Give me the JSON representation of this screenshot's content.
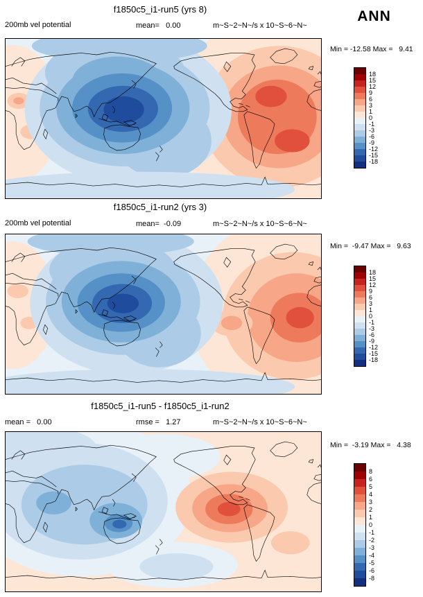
{
  "header": {
    "season_label": "ANN"
  },
  "panels": [
    {
      "title": "f1850c5_i1-run5 (yrs 8)",
      "var_label": "200mb vel potential",
      "mean_label": "mean=   0.00",
      "units": "m~S~2~N~/s x 10~S~6~N~",
      "minmax": "Min = -12.58 Max =   9.41",
      "colorbar": {
        "labels": [
          "18",
          "15",
          "12",
          "9",
          "6",
          "3",
          "1",
          "0",
          "-1",
          "-3",
          "-6",
          "-9",
          "-12",
          "-15",
          "-18"
        ],
        "colors": [
          "#6b0001",
          "#9e0003",
          "#c7241f",
          "#e1503c",
          "#ee7a5c",
          "#f7a688",
          "#fbc9ae",
          "#fde6d6",
          "#e8f0f8",
          "#cfe0f1",
          "#abcbe6",
          "#7fb0d8",
          "#5590c7",
          "#3468b1",
          "#1f4c9c",
          "#12307f"
        ]
      }
    },
    {
      "title": "f1850c5_i1-run2 (yrs 3)",
      "var_label": "200mb vel potential",
      "mean_label": "mean=  -0.09",
      "units": "m~S~2~N~/s x 10~S~6~N~",
      "minmax": "Min =  -9.47 Max =   9.63",
      "colorbar": {
        "labels": [
          "18",
          "15",
          "12",
          "9",
          "6",
          "3",
          "1",
          "0",
          "-1",
          "-3",
          "-6",
          "-9",
          "-12",
          "-15",
          "-18"
        ],
        "colors": [
          "#6b0001",
          "#9e0003",
          "#c7241f",
          "#e1503c",
          "#ee7a5c",
          "#f7a688",
          "#fbc9ae",
          "#fde6d6",
          "#e8f0f8",
          "#cfe0f1",
          "#abcbe6",
          "#7fb0d8",
          "#5590c7",
          "#3468b1",
          "#1f4c9c",
          "#12307f"
        ]
      }
    },
    {
      "title": "f1850c5_i1-run5 - f1850c5_i1-run2",
      "mean_label": "mean =   0.00",
      "rmse_label": "rmse =   1.27",
      "units": "m~S~2~N~/s x 10~S~6~N~",
      "minmax": "Min =  -3.19 Max =   4.38",
      "colorbar": {
        "labels": [
          "8",
          "6",
          "5",
          "4",
          "3",
          "2",
          "1",
          "0",
          "-1",
          "-2",
          "-3",
          "-4",
          "-5",
          "-6",
          "-8"
        ],
        "colors": [
          "#6b0001",
          "#9e0003",
          "#c7241f",
          "#e1503c",
          "#ee7a5c",
          "#f7a688",
          "#fbc9ae",
          "#fde6d6",
          "#e8f0f8",
          "#cfe0f1",
          "#abcbe6",
          "#7fb0d8",
          "#5590c7",
          "#3468b1",
          "#1f4c9c",
          "#12307f"
        ]
      }
    }
  ],
  "chart_data": [
    {
      "type": "heatmap",
      "subtype": "filled-contour-global-map",
      "title": "f1850c5_i1-run5 (yrs 8)",
      "variable": "200mb vel potential",
      "season": "ANN",
      "units_raw": "m~S~2~N~/s x 10~S~6~N~",
      "units_meaning": "m^2/s x 10^6",
      "mean": 0.0,
      "min": -12.58,
      "max": 9.41,
      "contour_levels": [
        -18,
        -15,
        -12,
        -9,
        -6,
        -3,
        -1,
        0,
        1,
        3,
        6,
        9,
        12,
        15,
        18
      ],
      "pattern": "Negative (blue) center over Asia / Maritime Continent; positive (orange-red) maxima over tropical Atlantic and South America; weak positives at far left (Africa) edge"
    },
    {
      "type": "heatmap",
      "subtype": "filled-contour-global-map",
      "title": "f1850c5_i1-run2 (yrs 3)",
      "variable": "200mb vel potential",
      "season": "ANN",
      "units_raw": "m~S~2~N~/s x 10~S~6~N~",
      "units_meaning": "m^2/s x 10^6",
      "mean": -0.09,
      "min": -9.47,
      "max": 9.63,
      "contour_levels": [
        -18,
        -15,
        -12,
        -9,
        -6,
        -3,
        -1,
        0,
        1,
        3,
        6,
        9,
        12,
        15,
        18
      ],
      "pattern": "Negative (blue) center over Asia / Maritime Continent; positive maximum over South America / South Atlantic; secondary positive spot in eastern Pacific"
    },
    {
      "type": "heatmap",
      "subtype": "filled-contour-global-map",
      "title": "f1850c5_i1-run5 - f1850c5_i1-run2",
      "variable": "200mb vel potential (difference run5 - run2)",
      "season": "ANN",
      "units_raw": "m~S~2~N~/s x 10~S~6~N~",
      "units_meaning": "m^2/s x 10^6",
      "mean": 0.0,
      "rmse": 1.27,
      "min": -3.19,
      "max": 4.38,
      "contour_levels": [
        -8,
        -6,
        -5,
        -4,
        -3,
        -2,
        -1,
        0,
        1,
        2,
        3,
        4,
        5,
        6,
        8
      ],
      "pattern": "Blue (negative) differences over Africa / Indian Ocean / Maritime Continent; orange-red (positive) maximum over eastern Pacific / Central America; weak positive elsewhere"
    }
  ]
}
